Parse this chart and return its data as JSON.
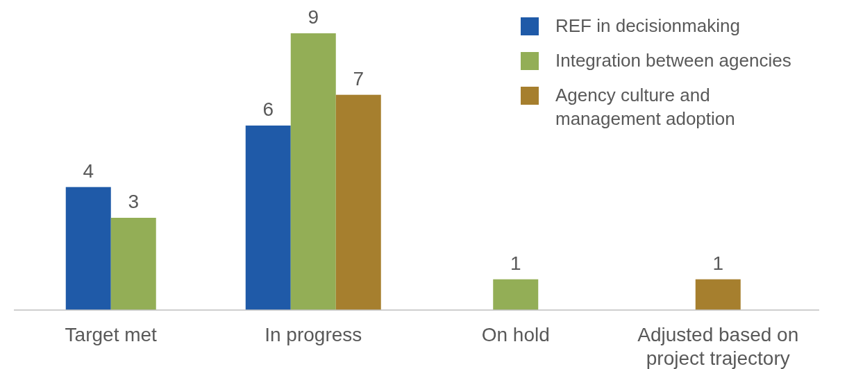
{
  "chart_data": {
    "type": "bar",
    "categories": [
      "Target met",
      "In progress",
      "On hold",
      "Adjusted based on project trajectory"
    ],
    "series": [
      {
        "name": "REF in decisionmaking",
        "color": "#1f5aa8",
        "values": [
          4,
          6,
          null,
          null
        ]
      },
      {
        "name": "Integration between agencies",
        "color": "#93ae56",
        "values": [
          3,
          9,
          1,
          null
        ]
      },
      {
        "name": "Agency culture and management adoption",
        "color": "#a67f2e",
        "values": [
          null,
          7,
          null,
          1
        ]
      }
    ],
    "data_labels": true,
    "legend": "top right"
  }
}
